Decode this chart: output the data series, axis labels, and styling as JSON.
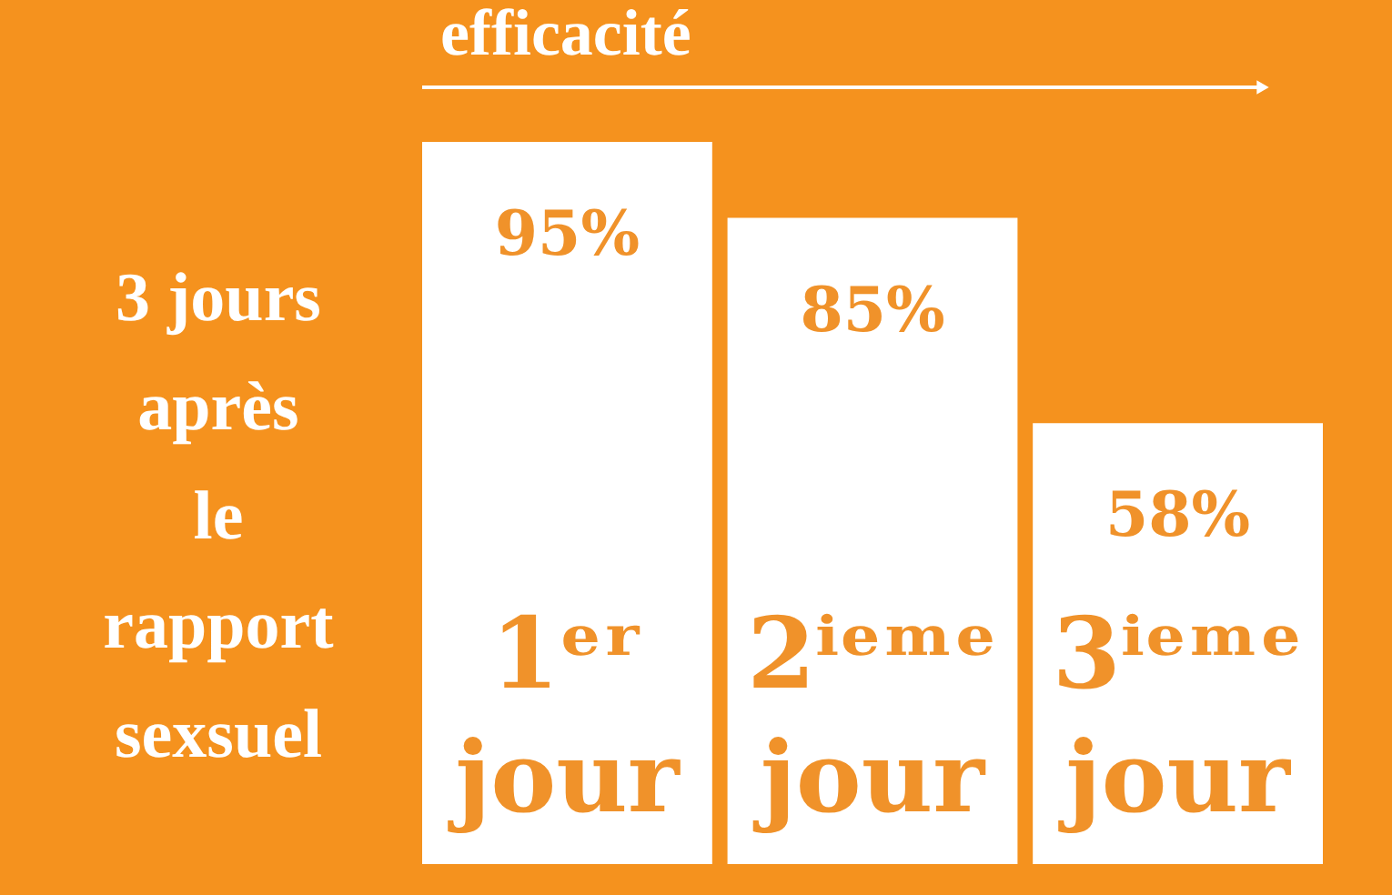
{
  "chart_data": {
    "type": "bar",
    "title": "efficacité",
    "ylabel": "3 jours\naprès\nle\nrapport\nsexsuel",
    "categories": [
      "1ᵉʳ jour",
      "2ⁱᵉᵐᵉ jour",
      "3ⁱᵉᵐᵉ jour"
    ],
    "values": [
      95,
      85,
      58
    ],
    "value_labels": [
      "95%",
      "85%",
      "58%"
    ],
    "color": "#ffffff"
  }
}
